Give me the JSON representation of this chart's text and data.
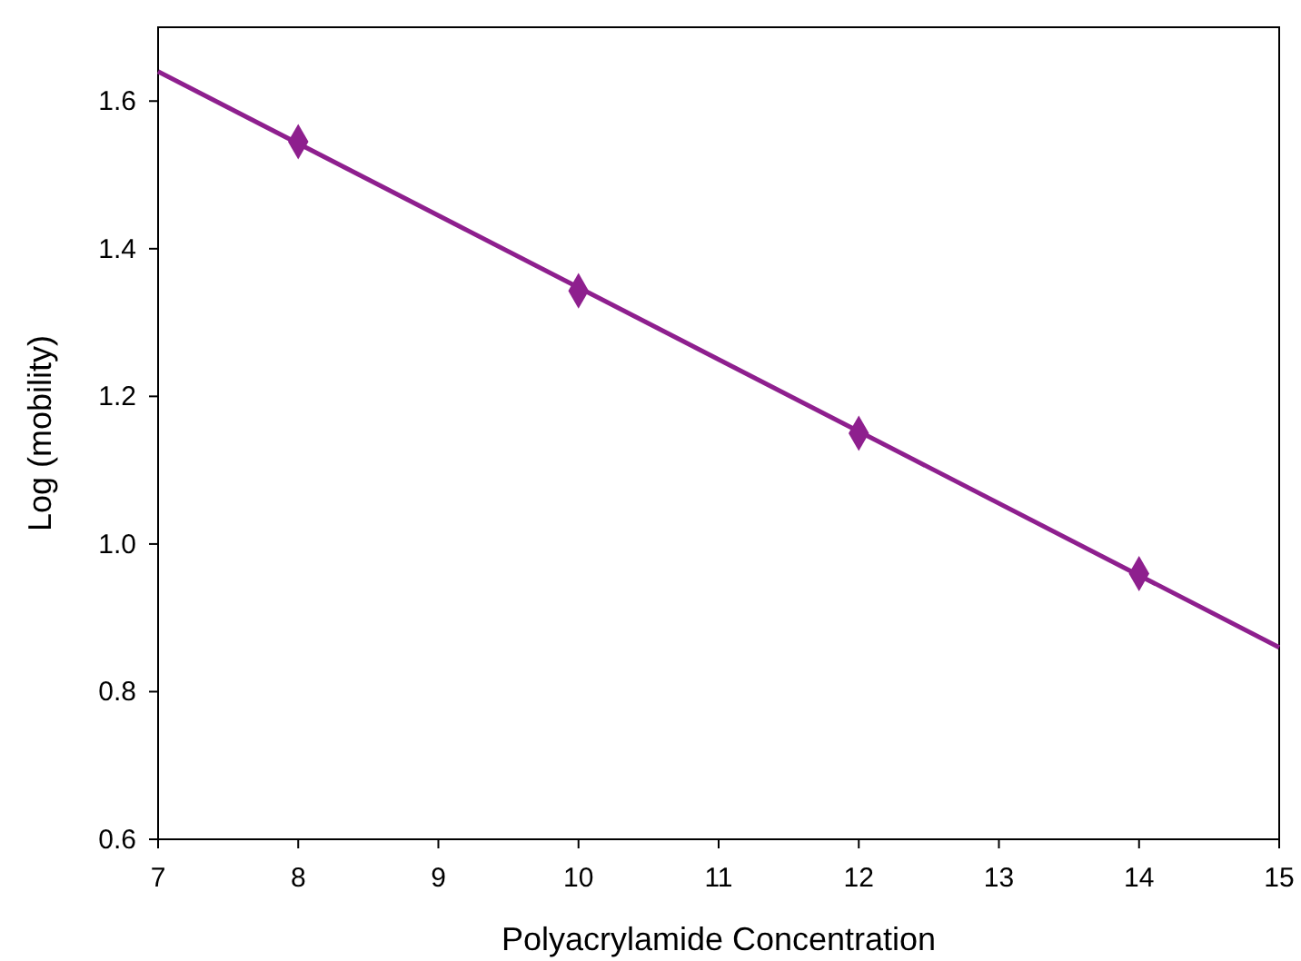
{
  "chart_data": {
    "type": "scatter",
    "xlabel": "Polyacrylamide Concentration",
    "ylabel": "Log (mobility)",
    "xlim": [
      7,
      15
    ],
    "xticks": [
      7,
      8,
      9,
      10,
      11,
      12,
      13,
      14,
      15
    ],
    "ylim": [
      0.6,
      1.7
    ],
    "yticks": [
      {
        "value": 0.6,
        "label": "0.6"
      },
      {
        "value": 0.8,
        "label": "0.8"
      },
      {
        "value": 1.0,
        "label": "1.0"
      },
      {
        "value": 1.2,
        "label": "1.2"
      },
      {
        "value": 1.4,
        "label": "1.4"
      },
      {
        "value": 1.6,
        "label": "1.6"
      }
    ],
    "grid": false,
    "series": [
      {
        "type": "line",
        "color": "#8e1f8e",
        "x": [
          7,
          15
        ],
        "values": [
          1.64,
          0.86
        ],
        "marker": "none",
        "line_style": "solid"
      },
      {
        "color": "#8e1f8e",
        "x": [
          8,
          10,
          12,
          14
        ],
        "values": [
          1.545,
          1.343,
          1.15,
          0.96
        ],
        "marker": "diamond"
      }
    ]
  }
}
